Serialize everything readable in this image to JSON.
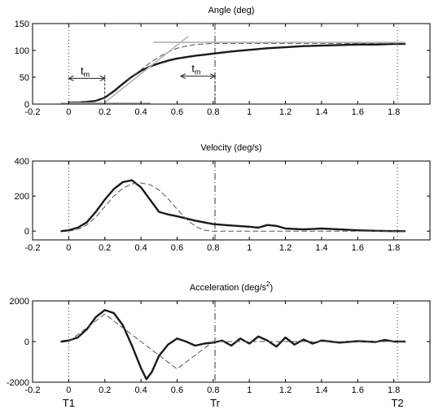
{
  "chart_data": [
    {
      "type": "line",
      "title": "Angle (deg)",
      "xlim": [
        -0.2,
        2.0
      ],
      "ylim": [
        0,
        150
      ],
      "xticks": [
        -0.2,
        0,
        0.2,
        0.4,
        0.6,
        0.8,
        1,
        1.2,
        1.4,
        1.6,
        1.8
      ],
      "xtick_labels": [
        "-0.2",
        "0",
        "0.2",
        "0.4",
        "0.6",
        "0.8",
        "1",
        "1.2",
        "1.4",
        "1.6",
        "1.8"
      ],
      "yticks": [
        0,
        50,
        100,
        150
      ],
      "ytick_labels": [
        "0",
        "50",
        "100",
        "150"
      ],
      "grid": false,
      "series": [
        {
          "style": "solid-thick",
          "x": [
            0,
            0.05,
            0.1,
            0.15,
            0.2,
            0.25,
            0.3,
            0.35,
            0.4,
            0.45,
            0.5,
            0.55,
            0.6,
            0.7,
            0.8,
            0.9,
            1.0,
            1.1,
            1.2,
            1.3,
            1.4,
            1.5,
            1.6,
            1.7,
            1.8,
            1.86
          ],
          "y": [
            3,
            3,
            4,
            6,
            12,
            24,
            38,
            51,
            62,
            70,
            76,
            81,
            85,
            90,
            94,
            98,
            101,
            104,
            106,
            108,
            109,
            110,
            111,
            111,
            112,
            112
          ]
        },
        {
          "style": "dashed",
          "x": [
            0,
            0.1,
            0.15,
            0.2,
            0.25,
            0.3,
            0.35,
            0.4,
            0.45,
            0.5,
            0.55,
            0.6,
            0.65,
            0.7,
            0.75,
            0.8,
            1.0,
            1.4,
            1.86
          ],
          "y": [
            3,
            3,
            5,
            11,
            22,
            36,
            50,
            64,
            77,
            88,
            97,
            104,
            108,
            111,
            112,
            113,
            113,
            113,
            113
          ]
        },
        {
          "style": "light-guide",
          "x": [
            0.2,
            0.66
          ],
          "y": [
            3,
            126
          ]
        },
        {
          "style": "light-guide",
          "x": [
            0.47,
            1.86
          ],
          "y": [
            115,
            115
          ]
        },
        {
          "style": "light-guide",
          "x": [
            -0.04,
            0.45
          ],
          "y": [
            2,
            2
          ]
        }
      ],
      "annotations": [
        {
          "text": "t",
          "subscript": "m",
          "x": [
            0,
            0.2
          ],
          "y": 48
        },
        {
          "text": "t",
          "subscript": "m",
          "x": [
            0.62,
            0.81
          ],
          "y": 52
        }
      ]
    },
    {
      "type": "line",
      "title": "Velocity (deg/s)",
      "xlim": [
        -0.2,
        2.0
      ],
      "ylim": [
        -50,
        400
      ],
      "xticks": [
        -0.2,
        0,
        0.2,
        0.4,
        0.6,
        0.8,
        1,
        1.2,
        1.4,
        1.6,
        1.8
      ],
      "xtick_labels": [
        "-0.2",
        "0",
        "0.2",
        "0.4",
        "0.6",
        "0.8",
        "1",
        "1.2",
        "1.4",
        "1.6",
        "1.8"
      ],
      "yticks": [
        0,
        200,
        400
      ],
      "ytick_labels": [
        "0",
        "200",
        "400"
      ],
      "grid": false,
      "series": [
        {
          "style": "solid-thick",
          "x": [
            -0.04,
            0,
            0.05,
            0.1,
            0.15,
            0.2,
            0.25,
            0.3,
            0.35,
            0.4,
            0.45,
            0.5,
            0.55,
            0.6,
            0.7,
            0.8,
            0.9,
            1.0,
            1.05,
            1.1,
            1.15,
            1.2,
            1.3,
            1.4,
            1.5,
            1.6,
            1.7,
            1.8,
            1.86
          ],
          "y": [
            0,
            5,
            20,
            50,
            110,
            180,
            240,
            280,
            290,
            250,
            180,
            110,
            95,
            85,
            60,
            40,
            32,
            25,
            20,
            35,
            30,
            15,
            10,
            15,
            10,
            5,
            2,
            0,
            0
          ]
        },
        {
          "style": "dashed",
          "x": [
            0,
            0.05,
            0.1,
            0.15,
            0.2,
            0.25,
            0.3,
            0.35,
            0.4,
            0.45,
            0.5,
            0.55,
            0.6,
            0.65,
            0.7,
            0.75,
            0.8,
            1.0,
            1.4,
            1.86
          ],
          "y": [
            0,
            10,
            35,
            80,
            140,
            200,
            245,
            270,
            275,
            265,
            235,
            185,
            125,
            70,
            28,
            5,
            0,
            0,
            0,
            0
          ]
        }
      ]
    },
    {
      "type": "line",
      "title": "Acceleration (deg/s",
      "title_superscript": "2",
      "title_suffix": ")",
      "xlim": [
        -0.2,
        2.0
      ],
      "ylim": [
        -2000,
        2000
      ],
      "xticks": [
        -0.2,
        0,
        0.2,
        0.4,
        0.6,
        0.8,
        1,
        1.2,
        1.4,
        1.6,
        1.8
      ],
      "xtick_labels": [
        "-0.2",
        "0",
        "0.2",
        "0.4",
        "0.6",
        "0.8",
        "1",
        "1.2",
        "1.4",
        "1.6",
        "1.8"
      ],
      "yticks": [
        -2000,
        0,
        2000
      ],
      "ytick_labels": [
        "-2000",
        "0",
        "2000"
      ],
      "grid": false,
      "series": [
        {
          "style": "solid-thick",
          "x": [
            -0.04,
            0,
            0.05,
            0.1,
            0.15,
            0.2,
            0.25,
            0.3,
            0.35,
            0.4,
            0.43,
            0.46,
            0.5,
            0.55,
            0.6,
            0.65,
            0.7,
            0.75,
            0.8,
            0.85,
            0.9,
            0.95,
            1.0,
            1.05,
            1.1,
            1.15,
            1.2,
            1.25,
            1.3,
            1.35,
            1.4,
            1.5,
            1.6,
            1.7,
            1.75,
            1.8,
            1.86
          ],
          "y": [
            0,
            50,
            200,
            600,
            1200,
            1550,
            1400,
            800,
            -200,
            -1300,
            -1850,
            -1500,
            -700,
            -150,
            150,
            0,
            -200,
            -100,
            -50,
            50,
            -200,
            150,
            -100,
            250,
            50,
            -250,
            200,
            -150,
            100,
            -100,
            50,
            -50,
            20,
            -20,
            80,
            0,
            0
          ]
        },
        {
          "style": "dashed",
          "x": [
            0,
            0.2,
            0.4,
            0.6,
            0.8,
            1.0,
            1.86
          ],
          "y": [
            0,
            1350,
            0,
            -1350,
            0,
            0,
            0
          ]
        }
      ]
    }
  ],
  "markers": [
    {
      "label": "T1",
      "x": 0,
      "style": "dotted"
    },
    {
      "label": "Tr",
      "x": 0.81,
      "style": "dash-dot"
    },
    {
      "label": "T2",
      "x": 1.82,
      "style": "dotted"
    }
  ],
  "colors": {
    "primary_line": "#1a1a1a",
    "model_line": "#555555",
    "guide_line": "#b3b3b3"
  }
}
